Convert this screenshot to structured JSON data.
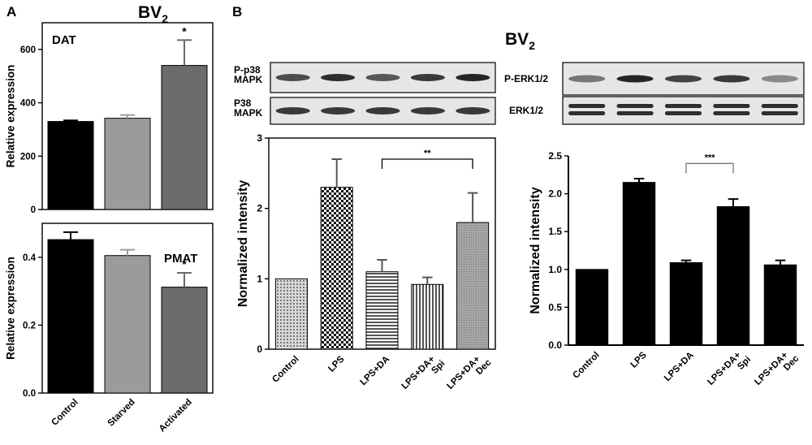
{
  "panel_labels": {
    "a": "A",
    "b": "B"
  },
  "titles": {
    "left": {
      "main": "BV",
      "sub": "2"
    },
    "right": {
      "main": "BV",
      "sub": "2"
    }
  },
  "blots": {
    "p38": {
      "labels": [
        {
          "row": 0,
          "lines": [
            "P-p38",
            "MAPK"
          ]
        },
        {
          "row": 1,
          "lines": [
            "P38",
            "MAPK"
          ]
        }
      ]
    },
    "erk": {
      "labels": [
        {
          "row": 0,
          "lines": [
            "P-ERK1/2"
          ]
        },
        {
          "row": 1,
          "lines": [
            "ERK1/2"
          ]
        }
      ]
    }
  },
  "chart_data": [
    {
      "id": "dat",
      "type": "bar",
      "annotation": "DAT",
      "ylabel": "Relative expression",
      "categories": [
        "Control",
        "Starved",
        "Activated"
      ],
      "values": [
        330,
        342,
        540
      ],
      "errors": [
        4,
        12,
        95
      ],
      "colors": [
        "#000000",
        "#9b9b9b",
        "#6b6b6b"
      ],
      "ylim": [
        0,
        700
      ],
      "yticks": [
        0,
        200,
        400,
        600
      ],
      "significance": [
        "",
        "",
        "*"
      ],
      "show_categories": false
    },
    {
      "id": "pmat",
      "type": "bar",
      "annotation": "PMAT",
      "ylabel": "Relative expression",
      "categories": [
        "Control",
        "Starved",
        "Activated"
      ],
      "values": [
        0.452,
        0.405,
        0.312
      ],
      "errors": [
        0.022,
        0.017,
        0.042
      ],
      "colors": [
        "#000000",
        "#9b9b9b",
        "#6b6b6b"
      ],
      "ylim": [
        0,
        0.5
      ],
      "yticks": [
        0.0,
        0.2,
        0.4
      ],
      "tick_decimals": 1,
      "significance": [
        "",
        "",
        "*"
      ],
      "show_categories": true
    },
    {
      "id": "p38",
      "type": "bar",
      "ylabel": "Normalized intensity",
      "categories": [
        "Control",
        "LPS",
        "LPS+DA",
        "LPS+DA+\nSpi",
        "LPS+DA+\nDec"
      ],
      "values": [
        1.0,
        2.3,
        1.1,
        0.92,
        1.8
      ],
      "errors": [
        0,
        0.4,
        0.17,
        0.1,
        0.42
      ],
      "patterns": [
        "dots",
        "checker",
        "hlines",
        "vlines",
        "gray"
      ],
      "ylim": [
        0,
        3
      ],
      "yticks": [
        0,
        1,
        2,
        3
      ],
      "tick_decimals": 0,
      "bracket": {
        "from": 2,
        "to": 4,
        "label": "**"
      },
      "show_categories": true
    },
    {
      "id": "erk",
      "type": "bar",
      "ylabel": "Normalized intensity",
      "categories": [
        "Control",
        "LPS",
        "LPS+DA",
        "LPS+DA+\nSpi",
        "LPS+DA+\nDec"
      ],
      "values": [
        1.0,
        2.15,
        1.09,
        1.83,
        1.06
      ],
      "errors": [
        0,
        0.05,
        0.03,
        0.1,
        0.06
      ],
      "colors": [
        "#000000",
        "#000000",
        "#000000",
        "#000000",
        "#000000"
      ],
      "ylim": [
        0,
        2.5
      ],
      "yticks": [
        0.0,
        0.5,
        1.0,
        1.5,
        2.0,
        2.5
      ],
      "tick_decimals": 1,
      "bracket": {
        "from": 2,
        "to": 3,
        "label": "***"
      },
      "show_categories": true
    }
  ]
}
